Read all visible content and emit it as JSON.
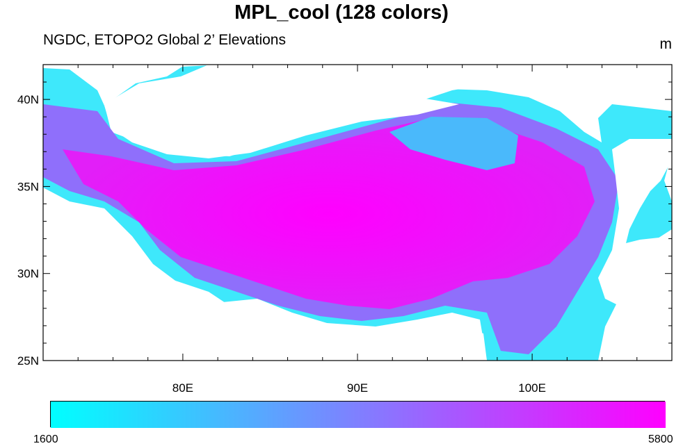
{
  "title": "MPL_cool (128 colors)",
  "subtitle": "NGDC, ETOPO2 Global 2’ Elevations",
  "units": "m",
  "colormap": {
    "name": "MPL_cool",
    "levels": 128,
    "min_color": "#00ffff",
    "max_color": "#ff00ff"
  },
  "colorbar": {
    "min_label": "1600",
    "max_label": "5800"
  },
  "axes": {
    "lon_range": [
      72,
      108
    ],
    "lat_range": [
      25,
      42
    ],
    "x_ticks": [
      {
        "value": 80,
        "label": "80E"
      },
      {
        "value": 90,
        "label": "90E"
      },
      {
        "value": 100,
        "label": "100E"
      }
    ],
    "y_ticks": [
      {
        "value": 40,
        "label": "40N"
      },
      {
        "value": 35,
        "label": "35N"
      },
      {
        "value": 30,
        "label": "30N"
      },
      {
        "value": 25,
        "label": "25N"
      }
    ]
  }
}
